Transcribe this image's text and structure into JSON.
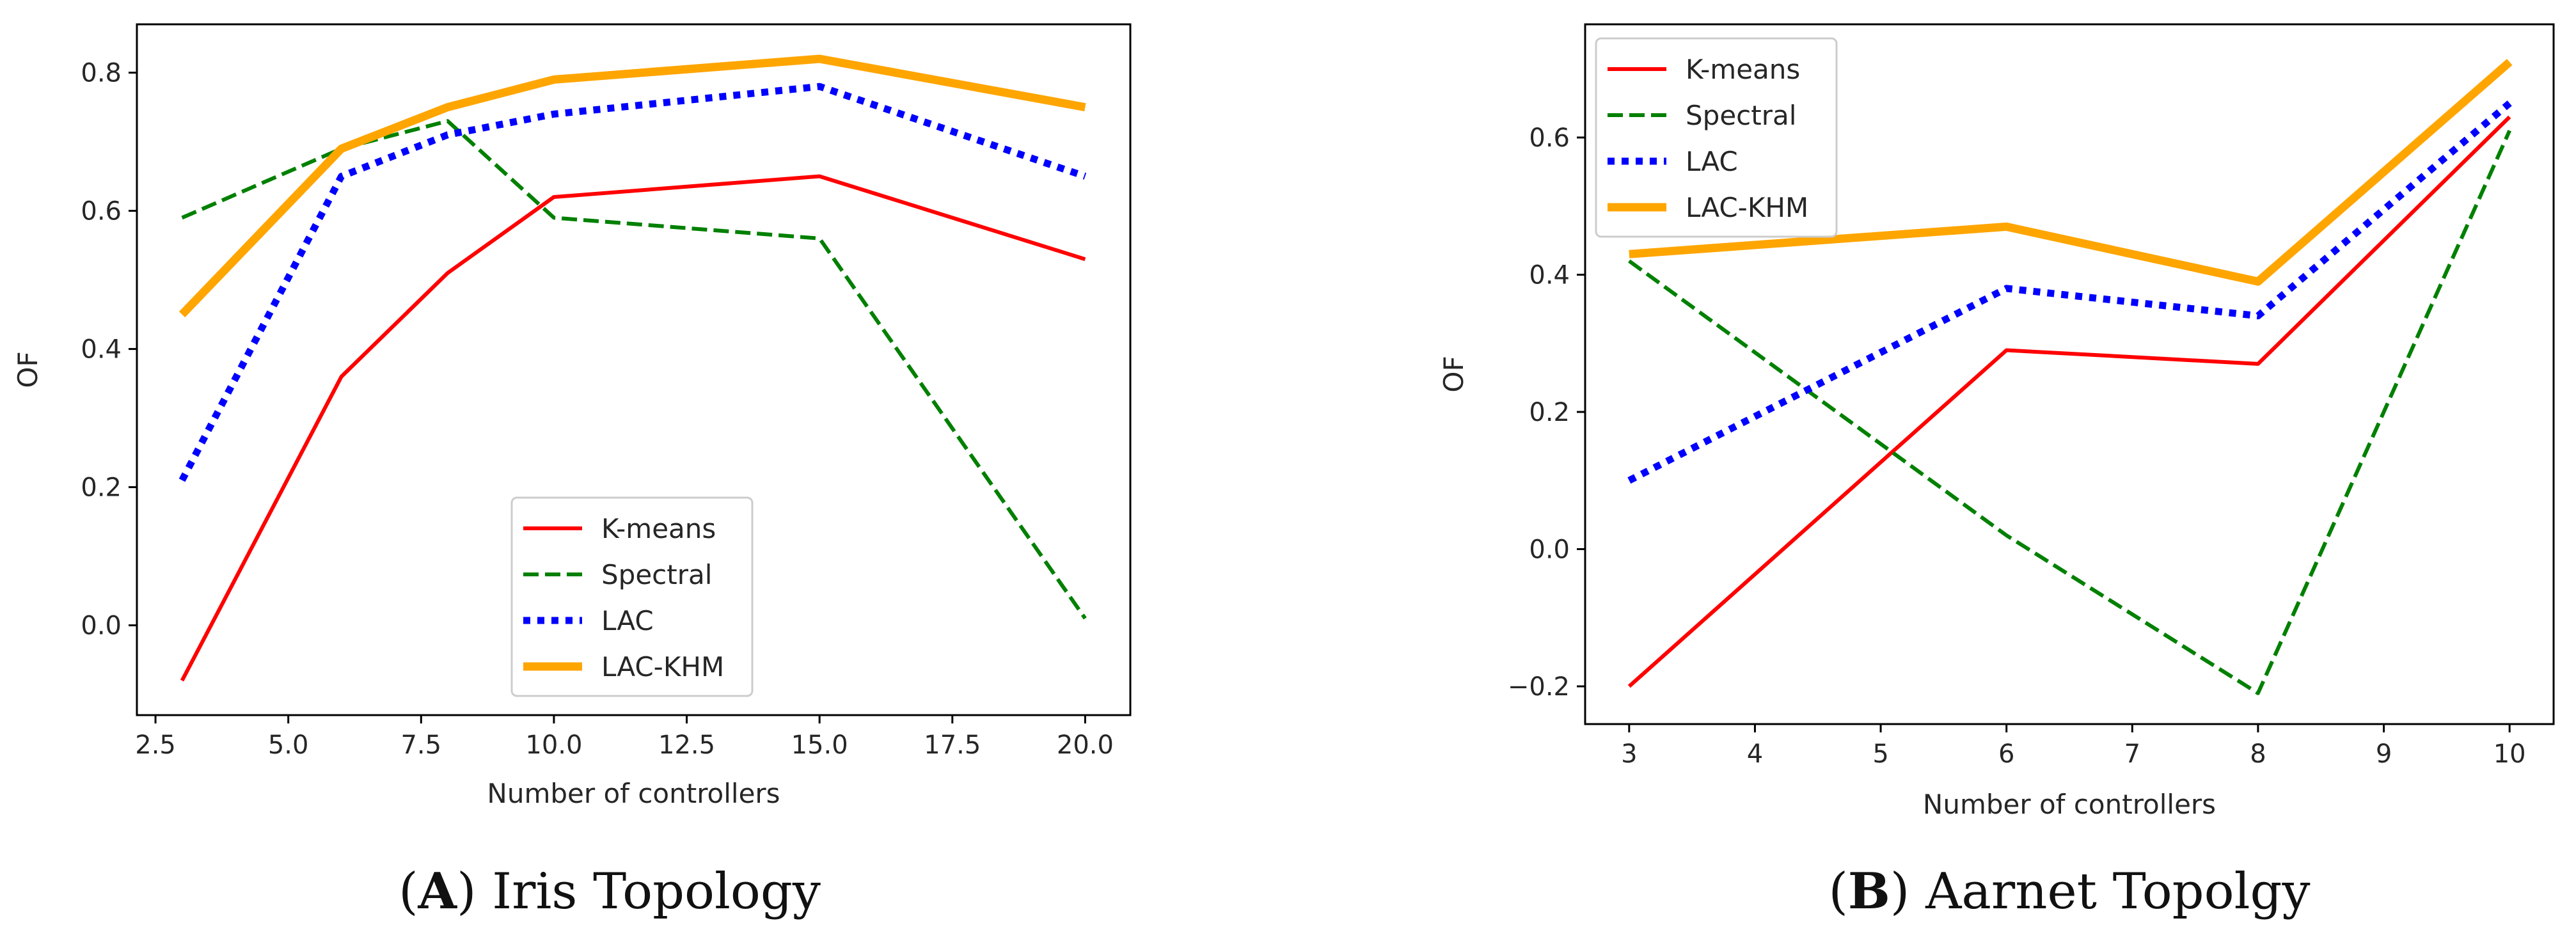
{
  "chart_data": [
    {
      "type": "line",
      "caption": {
        "open": "(",
        "letter": "A",
        "close": ")",
        "text": " Iris Topology"
      },
      "xlabel": "Number of controllers",
      "ylabel": "OF",
      "xlim": [
        2.15,
        20.85
      ],
      "ylim": [
        -0.13,
        0.87
      ],
      "xticks": [
        2.5,
        5.0,
        7.5,
        10.0,
        12.5,
        15.0,
        17.5,
        20.0
      ],
      "xtick_labels": [
        "2.5",
        "5.0",
        "7.5",
        "10.0",
        "12.5",
        "15.0",
        "17.5",
        "20.0"
      ],
      "yticks": [
        0.0,
        0.2,
        0.4,
        0.6,
        0.8
      ],
      "ytick_labels": [
        "0.0",
        "0.2",
        "0.4",
        "0.6",
        "0.8"
      ],
      "legend_position": "lower-center",
      "x": [
        3,
        6,
        8,
        10,
        15,
        20
      ],
      "series": [
        {
          "name": "K-means",
          "values": [
            -0.08,
            0.36,
            0.51,
            0.62,
            0.65,
            0.53
          ],
          "color": "#ff0000",
          "style": "solid"
        },
        {
          "name": "Spectral",
          "values": [
            0.59,
            0.69,
            0.73,
            0.59,
            0.56,
            0.01
          ],
          "color": "#008000",
          "style": "dashed"
        },
        {
          "name": "LAC",
          "values": [
            0.21,
            0.65,
            0.71,
            0.74,
            0.78,
            0.65
          ],
          "color": "#0000ff",
          "style": "dotted"
        },
        {
          "name": "LAC-KHM",
          "values": [
            0.45,
            0.69,
            0.75,
            0.79,
            0.82,
            0.75
          ],
          "color": "#ffa500",
          "style": "thick"
        }
      ]
    },
    {
      "type": "line",
      "caption": {
        "open": "(",
        "letter": "B",
        "close": ")",
        "text": " Aarnet Topolgy"
      },
      "xlabel": "Number of controllers",
      "ylabel": "OF",
      "xlim": [
        2.65,
        10.35
      ],
      "ylim": [
        -0.255,
        0.765
      ],
      "xticks": [
        3,
        4,
        5,
        6,
        7,
        8,
        9,
        10
      ],
      "xtick_labels": [
        "3",
        "4",
        "5",
        "6",
        "7",
        "8",
        "9",
        "10"
      ],
      "yticks": [
        -0.2,
        0.0,
        0.2,
        0.4,
        0.6
      ],
      "ytick_labels": [
        "−0.2",
        "0.0",
        "0.2",
        "0.4",
        "0.6"
      ],
      "legend_position": "upper-left",
      "x": [
        3,
        6,
        8,
        10
      ],
      "series": [
        {
          "name": "K-means",
          "values": [
            -0.2,
            0.29,
            0.27,
            0.63
          ],
          "color": "#ff0000",
          "style": "solid"
        },
        {
          "name": "Spectral",
          "values": [
            0.42,
            0.02,
            -0.21,
            0.61
          ],
          "color": "#008000",
          "style": "dashed"
        },
        {
          "name": "LAC",
          "values": [
            0.1,
            0.38,
            0.34,
            0.65
          ],
          "color": "#0000ff",
          "style": "dotted"
        },
        {
          "name": "LAC-KHM",
          "values": [
            0.43,
            0.47,
            0.39,
            0.71
          ],
          "color": "#ffa500",
          "style": "thick"
        }
      ]
    }
  ]
}
